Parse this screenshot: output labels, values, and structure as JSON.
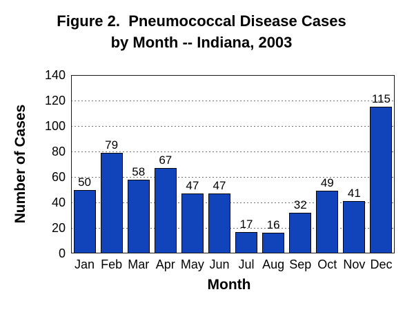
{
  "figure": {
    "title_line1": "Figure 2.  Pneumococcal Disease Cases",
    "title_line2": "by Month -- Indiana, 2003"
  },
  "chart_data": {
    "type": "bar",
    "title": "Figure 2.  Pneumococcal Disease Cases by Month -- Indiana, 2003",
    "categories": [
      "Jan",
      "Feb",
      "Mar",
      "Apr",
      "May",
      "Jun",
      "Jul",
      "Aug",
      "Sep",
      "Oct",
      "Nov",
      "Dec"
    ],
    "values": [
      50,
      79,
      58,
      67,
      47,
      47,
      17,
      16,
      32,
      49,
      41,
      115
    ],
    "xlabel": "Month",
    "ylabel": "Number of Cases",
    "ylim": [
      0,
      140
    ],
    "ytick_step": 20,
    "yticks": [
      0,
      20,
      40,
      60,
      80,
      100,
      120,
      140
    ],
    "grid": "horizontal-dotted",
    "legend_position": "none",
    "data_labels": true,
    "colors": {
      "bar_fill": "#1143BB",
      "bar_border": "#000000",
      "text": "#000000",
      "gridline": "#707070",
      "frame": "#161616",
      "background": "#ffffff"
    }
  }
}
